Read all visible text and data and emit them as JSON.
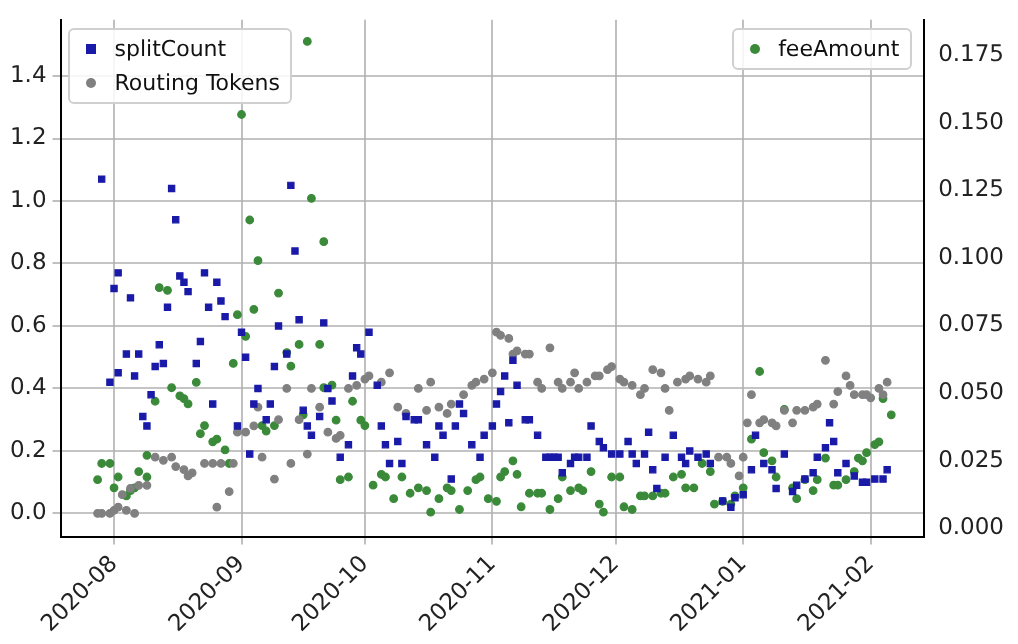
{
  "chart_data": {
    "type": "scatter",
    "grid": true,
    "legend": "top",
    "xlim": [
      "2020-07-19",
      "2021-02-14"
    ],
    "xticks": [
      "2020-08",
      "2020-09",
      "2020-10",
      "2020-11",
      "2020-12",
      "2021-01",
      "2021-02"
    ],
    "ylim": [
      -0.074,
      1.58
    ],
    "yticks": [
      {
        "value": 0,
        "label": "0.0"
      },
      0.2,
      0.4,
      0.6,
      0.8,
      {
        "value": 1,
        "label": "1.0"
      },
      1.2,
      1.4
    ],
    "y2lim": [
      -0.003,
      0.188
    ],
    "y2ticks": [
      {
        "value": 0,
        "label": "0.000"
      },
      0.025,
      {
        "value": 0.05,
        "label": "0.050"
      },
      0.075,
      {
        "value": 0.1,
        "label": "0.100"
      },
      0.125,
      {
        "value": 0.15,
        "label": "0.150"
      },
      0.175
    ],
    "series": [
      {
        "name": "splitCount",
        "color": "#1a1aa8",
        "marker": "square",
        "x": [
          "2020-07-29",
          "2020-07-31",
          "2020-08-01",
          "2020-08-02",
          "2020-08-02",
          "2020-08-04",
          "2020-08-05",
          "2020-08-06",
          "2020-08-07",
          "2020-08-08",
          "2020-08-09",
          "2020-08-10",
          "2020-08-11",
          "2020-08-12",
          "2020-08-13",
          "2020-08-14",
          "2020-08-15",
          "2020-08-16",
          "2020-08-17",
          "2020-08-18",
          "2020-08-19",
          "2020-08-21",
          "2020-08-22",
          "2020-08-23",
          "2020-08-24",
          "2020-08-25",
          "2020-08-26",
          "2020-08-27",
          "2020-08-28",
          "2020-08-31",
          "2020-09-01",
          "2020-09-02",
          "2020-09-03",
          "2020-09-04",
          "2020-09-05",
          "2020-09-07",
          "2020-09-08",
          "2020-09-09",
          "2020-09-10",
          "2020-09-12",
          "2020-09-13",
          "2020-09-14",
          "2020-09-15",
          "2020-09-16",
          "2020-09-17",
          "2020-09-18",
          "2020-09-20",
          "2020-09-21",
          "2020-09-22",
          "2020-09-23",
          "2020-09-25",
          "2020-09-27",
          "2020-09-28",
          "2020-09-29",
          "2020-09-30",
          "2020-10-02",
          "2020-10-04",
          "2020-10-05",
          "2020-10-06",
          "2020-10-07",
          "2020-10-09",
          "2020-10-10",
          "2020-10-11",
          "2020-10-13",
          "2020-10-14",
          "2020-10-16",
          "2020-10-18",
          "2020-10-19",
          "2020-10-20",
          "2020-10-22",
          "2020-10-23",
          "2020-10-24",
          "2020-10-25",
          "2020-10-27",
          "2020-10-29",
          "2020-10-30",
          "2020-11-01",
          "2020-11-02",
          "2020-11-03",
          "2020-11-04",
          "2020-11-05",
          "2020-11-06",
          "2020-11-07",
          "2020-11-09",
          "2020-11-10",
          "2020-11-12",
          "2020-11-14",
          "2020-11-15",
          "2020-11-16",
          "2020-11-17",
          "2020-11-18",
          "2020-11-20",
          "2020-11-21",
          "2020-11-22",
          "2020-11-24",
          "2020-11-25",
          "2020-11-27",
          "2020-11-28",
          "2020-11-30",
          "2020-12-02",
          "2020-12-04",
          "2020-12-05",
          "2020-12-06",
          "2020-12-08",
          "2020-12-09",
          "2020-12-10",
          "2020-12-11",
          "2020-12-13",
          "2020-12-15",
          "2020-12-17",
          "2020-12-18",
          "2020-12-19",
          "2020-12-21",
          "2020-12-23",
          "2020-12-24",
          "2020-12-27",
          "2020-12-29",
          "2020-12-30",
          "2021-01-01",
          "2021-01-03",
          "2021-01-04",
          "2021-01-06",
          "2021-01-08",
          "2021-01-09",
          "2021-01-11",
          "2021-01-13",
          "2021-01-14",
          "2021-01-16",
          "2021-01-18",
          "2021-01-19",
          "2021-01-21",
          "2021-01-22",
          "2021-01-23",
          "2021-01-24",
          "2021-01-26",
          "2021-01-28",
          "2021-01-30",
          "2021-01-31",
          "2021-02-02",
          "2021-02-04",
          "2021-02-05"
        ],
        "values": [
          1.07,
          0.42,
          0.72,
          0.45,
          0.77,
          0.51,
          0.69,
          0.44,
          0.51,
          0.31,
          0.28,
          0.38,
          0.47,
          0.54,
          0.48,
          0.66,
          1.04,
          0.94,
          0.76,
          0.74,
          0.71,
          0.48,
          0.55,
          0.77,
          0.66,
          0.35,
          0.74,
          0.68,
          0.63,
          0.28,
          0.58,
          0.5,
          0.19,
          0.35,
          0.4,
          0.3,
          0.35,
          0.47,
          0.6,
          0.51,
          1.05,
          0.84,
          0.62,
          0.33,
          0.28,
          0.25,
          0.31,
          0.61,
          0.4,
          0.36,
          0.18,
          0.22,
          0.44,
          0.53,
          0.51,
          0.58,
          0.41,
          0.28,
          0.22,
          0.16,
          0.23,
          0.16,
          0.31,
          0.3,
          0.3,
          0.22,
          0.18,
          0.28,
          0.25,
          0.11,
          0.28,
          0.35,
          0.32,
          0.22,
          0.18,
          0.25,
          0.28,
          0.35,
          0.39,
          0.44,
          0.29,
          0.49,
          0.41,
          0.3,
          0.3,
          0.25,
          0.18,
          0.18,
          0.18,
          0.18,
          0.13,
          0.16,
          0.18,
          0.18,
          0.18,
          0.28,
          0.23,
          0.21,
          0.19,
          0.19,
          0.23,
          0.19,
          0.16,
          0.19,
          0.26,
          0.14,
          0.08,
          0.18,
          0.25,
          0.18,
          0.16,
          0.2,
          0.18,
          0.19,
          0.16,
          0.04,
          0.02,
          0.05,
          0.06,
          0.14,
          0.25,
          0.16,
          0.14,
          0.08,
          0.19,
          0.07,
          0.09,
          0.11,
          0.13,
          0.18,
          0.21,
          0.29,
          0.23,
          0.13,
          0.16,
          0.12,
          0.1,
          0.1,
          0.11,
          0.11,
          0.14
        ]
      },
      {
        "name": "Routing Tokens",
        "color": "#808080",
        "marker": "circle",
        "x": [
          "2020-07-28",
          "2020-07-29",
          "2020-07-31",
          "2020-08-01",
          "2020-08-02",
          "2020-08-03",
          "2020-08-04",
          "2020-08-05",
          "2020-08-06",
          "2020-08-07",
          "2020-08-09",
          "2020-08-11",
          "2020-08-13",
          "2020-08-15",
          "2020-08-16",
          "2020-08-18",
          "2020-08-19",
          "2020-08-20",
          "2020-08-23",
          "2020-08-25",
          "2020-08-26",
          "2020-08-27",
          "2020-08-29",
          "2020-08-30",
          "2020-08-31",
          "2020-09-02",
          "2020-09-04",
          "2020-09-05",
          "2020-09-06",
          "2020-09-09",
          "2020-09-10",
          "2020-09-12",
          "2020-09-13",
          "2020-09-15",
          "2020-09-17",
          "2020-09-18",
          "2020-09-20",
          "2020-09-22",
          "2020-09-24",
          "2020-09-25",
          "2020-09-27",
          "2020-09-29",
          "2020-10-01",
          "2020-10-02",
          "2020-10-05",
          "2020-10-07",
          "2020-10-09",
          "2020-10-11",
          "2020-10-14",
          "2020-10-16",
          "2020-10-17",
          "2020-10-19",
          "2020-10-21",
          "2020-10-22",
          "2020-10-25",
          "2020-10-27",
          "2020-10-28",
          "2020-10-30",
          "2020-11-01",
          "2020-11-02",
          "2020-11-03",
          "2020-11-05",
          "2020-11-06",
          "2020-11-07",
          "2020-11-09",
          "2020-11-10",
          "2020-11-12",
          "2020-11-13",
          "2020-11-15",
          "2020-11-17",
          "2020-11-18",
          "2020-11-20",
          "2020-11-21",
          "2020-11-22",
          "2020-11-24",
          "2020-11-26",
          "2020-11-27",
          "2020-11-29",
          "2020-11-30",
          "2020-12-02",
          "2020-12-03",
          "2020-12-05",
          "2020-12-07",
          "2020-12-08",
          "2020-12-10",
          "2020-12-12",
          "2020-12-13",
          "2020-12-14",
          "2020-12-16",
          "2020-12-18",
          "2020-12-19",
          "2020-12-21",
          "2020-12-23",
          "2020-12-24",
          "2020-12-26",
          "2020-12-28",
          "2020-12-29",
          "2020-12-31",
          "2021-01-01",
          "2021-01-02",
          "2021-01-03",
          "2021-01-05",
          "2021-01-06",
          "2021-01-08",
          "2021-01-09",
          "2021-01-11",
          "2021-01-13",
          "2021-01-14",
          "2021-01-16",
          "2021-01-18",
          "2021-01-19",
          "2021-01-21",
          "2021-01-23",
          "2021-01-24",
          "2021-01-26",
          "2021-01-27",
          "2021-01-28",
          "2021-01-30",
          "2021-01-31",
          "2021-02-01",
          "2021-02-03",
          "2021-02-04",
          "2021-02-05"
        ],
        "values": [
          0,
          0,
          0,
          0.01,
          0.02,
          0.06,
          0.01,
          0.08,
          0,
          0.09,
          0.09,
          0.18,
          0.17,
          0.18,
          0.15,
          0.14,
          0.12,
          0.13,
          0.16,
          0.16,
          0.02,
          0.16,
          0.07,
          0.16,
          0.26,
          0.26,
          0.28,
          0.34,
          0.18,
          0.11,
          0.3,
          0.4,
          0.16,
          0.3,
          0.19,
          0.4,
          0.34,
          0.26,
          0.24,
          0.25,
          0.4,
          0.41,
          0.43,
          0.44,
          0.42,
          0.45,
          0.34,
          0.32,
          0.4,
          0.33,
          0.42,
          0.34,
          0.32,
          0.35,
          0.38,
          0.41,
          0.42,
          0.43,
          0.45,
          0.58,
          0.57,
          0.56,
          0.51,
          0.52,
          0.51,
          0.51,
          0.42,
          0.4,
          0.53,
          0.42,
          0.4,
          0.42,
          0.45,
          0.4,
          0.42,
          0.44,
          0.44,
          0.46,
          0.47,
          0.43,
          0.42,
          0.41,
          0.38,
          0.4,
          0.46,
          0.45,
          0.4,
          0.33,
          0.42,
          0.43,
          0.44,
          0.43,
          0.42,
          0.44,
          0.18,
          0.18,
          0.16,
          0.12,
          0.18,
          0.29,
          0.38,
          0.29,
          0.3,
          0.29,
          0.28,
          0.33,
          0.29,
          0.33,
          0.33,
          0.34,
          0.35,
          0.49,
          0.35,
          0.39,
          0.44,
          0.41,
          0.38,
          0.38,
          0.38,
          0.37,
          0.4,
          0.38,
          0.42
        ]
      },
      {
        "name": "feeAmount",
        "color": "#3a8a3a",
        "marker": "circle",
        "axis": "y2",
        "x": [
          "2020-07-28",
          "2020-07-29",
          "2020-07-31",
          "2020-08-01",
          "2020-08-02",
          "2020-08-04",
          "2020-08-05",
          "2020-08-06",
          "2020-08-07",
          "2020-08-09",
          "2020-08-09",
          "2020-08-11",
          "2020-08-12",
          "2020-08-14",
          "2020-08-15",
          "2020-08-17",
          "2020-08-18",
          "2020-08-19",
          "2020-08-21",
          "2020-08-22",
          "2020-08-23",
          "2020-08-25",
          "2020-08-26",
          "2020-08-28",
          "2020-08-29",
          "2020-08-30",
          "2020-08-31",
          "2020-09-01",
          "2020-09-02",
          "2020-09-03",
          "2020-09-04",
          "2020-09-05",
          "2020-09-06",
          "2020-09-07",
          "2020-09-09",
          "2020-09-10",
          "2020-09-12",
          "2020-09-13",
          "2020-09-15",
          "2020-09-16",
          "2020-09-17",
          "2020-09-18",
          "2020-09-20",
          "2020-09-21",
          "2020-09-21",
          "2020-09-23",
          "2020-09-24",
          "2020-09-25",
          "2020-09-27",
          "2020-09-28",
          "2020-09-30",
          "2020-10-01",
          "2020-10-03",
          "2020-10-05",
          "2020-10-06",
          "2020-10-08",
          "2020-10-10",
          "2020-10-12",
          "2020-10-14",
          "2020-10-16",
          "2020-10-17",
          "2020-10-19",
          "2020-10-21",
          "2020-10-22",
          "2020-10-24",
          "2020-10-26",
          "2020-10-28",
          "2020-10-29",
          "2020-10-31",
          "2020-11-02",
          "2020-11-03",
          "2020-11-04",
          "2020-11-06",
          "2020-11-07",
          "2020-11-08",
          "2020-11-10",
          "2020-11-12",
          "2020-11-13",
          "2020-11-15",
          "2020-11-17",
          "2020-11-18",
          "2020-11-20",
          "2020-11-22",
          "2020-11-23",
          "2020-11-25",
          "2020-11-27",
          "2020-11-28",
          "2020-11-30",
          "2020-12-02",
          "2020-12-03",
          "2020-12-05",
          "2020-12-07",
          "2020-12-08",
          "2020-12-10",
          "2020-12-12",
          "2020-12-13",
          "2020-12-15",
          "2020-12-17",
          "2020-12-18",
          "2020-12-20",
          "2020-12-22",
          "2020-12-24",
          "2020-12-25",
          "2020-12-27",
          "2020-12-29",
          "2020-12-30",
          "2021-01-01",
          "2021-01-03",
          "2021-01-05",
          "2021-01-06",
          "2021-01-08",
          "2021-01-09",
          "2021-01-11",
          "2021-01-13",
          "2021-01-14",
          "2021-01-16",
          "2021-01-18",
          "2021-01-19",
          "2021-01-21",
          "2021-01-23",
          "2021-01-24",
          "2021-01-26",
          "2021-01-28",
          "2021-01-29",
          "2021-01-30",
          "2021-01-31",
          "2021-02-02",
          "2021-02-03",
          "2021-02-04",
          "2021-02-06"
        ],
        "values": [
          0.018,
          0.024,
          0.024,
          0.015,
          0.019,
          0.012,
          0.014,
          0.015,
          0.021,
          0.019,
          0.027,
          0.047,
          0.089,
          0.088,
          0.052,
          0.049,
          0.048,
          0.046,
          0.054,
          0.035,
          0.038,
          0.032,
          0.033,
          0.029,
          0.024,
          0.061,
          0.079,
          0.153,
          0.071,
          0.114,
          0.081,
          0.099,
          0.038,
          0.036,
          0.038,
          0.087,
          0.065,
          0.06,
          0.068,
          0.042,
          0.18,
          0.122,
          0.068,
          0.106,
          0.052,
          0.053,
          0.04,
          0.018,
          0.019,
          0.047,
          0.04,
          0.038,
          0.016,
          0.02,
          0.019,
          0.011,
          0.019,
          0.013,
          0.015,
          0.014,
          0.006,
          0.011,
          0.015,
          0.014,
          0.007,
          0.014,
          0.018,
          0.019,
          0.011,
          0.01,
          0.019,
          0.021,
          0.025,
          0.02,
          0.008,
          0.013,
          0.013,
          0.013,
          0.007,
          0.011,
          0.019,
          0.014,
          0.015,
          0.014,
          0.021,
          0.009,
          0.006,
          0.019,
          0.019,
          0.008,
          0.007,
          0.012,
          0.012,
          0.012,
          0.013,
          0.013,
          0.019,
          0.02,
          0.015,
          0.015,
          0.024,
          0.021,
          0.009,
          0.01,
          0.009,
          0.012,
          0.015,
          0.033,
          0.058,
          0.028,
          0.025,
          0.019,
          0.044,
          0.015,
          0.011,
          0.018,
          0.014,
          0.018,
          0.026,
          0.016,
          0.016,
          0.018,
          0.021,
          0.026,
          0.025,
          0.028,
          0.031,
          0.032,
          0.048,
          0.042
        ]
      }
    ]
  }
}
